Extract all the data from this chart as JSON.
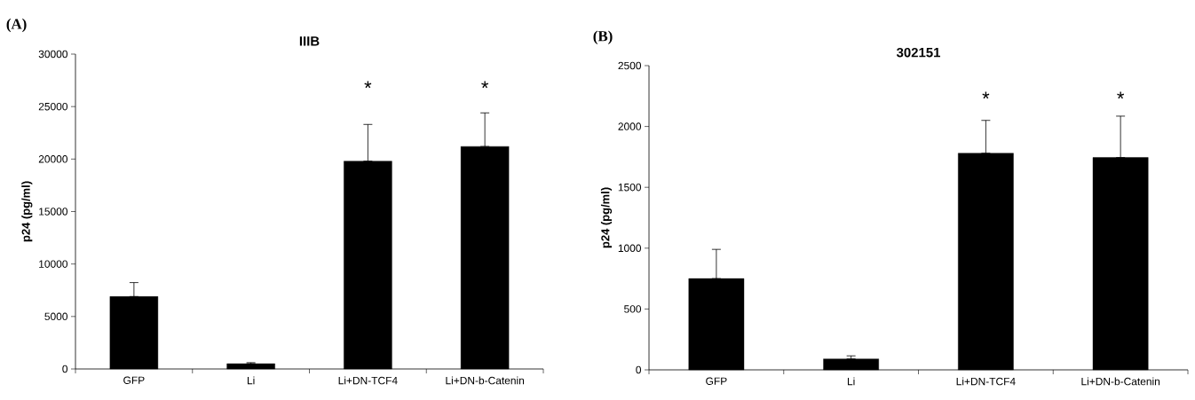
{
  "chart_data": [
    {
      "type": "bar",
      "title": "IIIB",
      "ylabel": "p24 (pg/ml)",
      "categories": [
        "GFP",
        "Li",
        "Li+DN-TCF4",
        "Li+DN-b-Catenin"
      ],
      "values": [
        6900,
        500,
        19800,
        21200
      ],
      "errors": [
        [
          6900,
          8230
        ],
        [
          500,
          600
        ],
        [
          19800,
          23300
        ],
        [
          21200,
          24400
        ]
      ],
      "color": "#000000",
      "ylim": [
        0,
        30000
      ],
      "yticks": [
        0,
        5000,
        10000,
        15000,
        20000,
        25000,
        30000
      ],
      "annotations": [
        "(A)",
        "*",
        "*"
      ]
    },
    {
      "type": "bar",
      "title": "302151",
      "ylabel": "p24 (pg/ml)",
      "categories": [
        "GFP",
        "Li",
        "Li+DN-TCF4",
        "Li+DN-b-Catenin"
      ],
      "values": [
        750,
        90,
        1780,
        1745
      ],
      "errors": [
        [
          750,
          990
        ],
        [
          90,
          115
        ],
        [
          1780,
          2050
        ],
        [
          1745,
          2085
        ]
      ],
      "color": "#000000",
      "ylim": [
        0,
        2500
      ],
      "yticks": [
        0,
        500,
        1000,
        1500,
        2000,
        2500
      ],
      "annotations": [
        "(B)",
        "*",
        "*"
      ]
    }
  ]
}
